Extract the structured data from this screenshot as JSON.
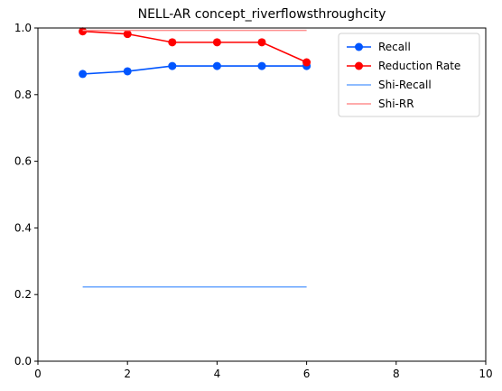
{
  "chart_data": {
    "type": "line",
    "title": "NELL-AR concept_riverflowsthroughcity",
    "xlabel": "",
    "ylabel": "",
    "xlim": [
      0,
      10
    ],
    "ylim": [
      0,
      1
    ],
    "xticks": [
      0,
      2,
      4,
      6,
      8,
      10
    ],
    "yticks": [
      0.0,
      0.2,
      0.4,
      0.6,
      0.8,
      1.0
    ],
    "xtick_labels": [
      "0",
      "2",
      "4",
      "6",
      "8",
      "10"
    ],
    "ytick_labels": [
      "0.0",
      "0.2",
      "0.4",
      "0.6",
      "0.8",
      "1.0"
    ],
    "grid": false,
    "legend_position": "top-right",
    "series": [
      {
        "name": "Recall",
        "color": "#0055ff",
        "marker": "circle",
        "x": [
          1,
          2,
          3,
          4,
          5,
          6
        ],
        "y": [
          0.862,
          0.87,
          0.886,
          0.886,
          0.886,
          0.886
        ]
      },
      {
        "name": "Reduction Rate",
        "color": "#ff0000",
        "marker": "circle",
        "x": [
          1,
          2,
          3,
          4,
          5,
          6
        ],
        "y": [
          0.99,
          0.982,
          0.957,
          0.957,
          0.957,
          0.897
        ]
      },
      {
        "name": "Shi-Recall",
        "color": "#6aa6ff",
        "marker": "none",
        "x": [
          1,
          6
        ],
        "y": [
          0.223,
          0.223
        ]
      },
      {
        "name": "Shi-RR",
        "color": "#ff8f8f",
        "marker": "none",
        "x": [
          1,
          6
        ],
        "y": [
          0.993,
          0.993
        ]
      }
    ]
  }
}
